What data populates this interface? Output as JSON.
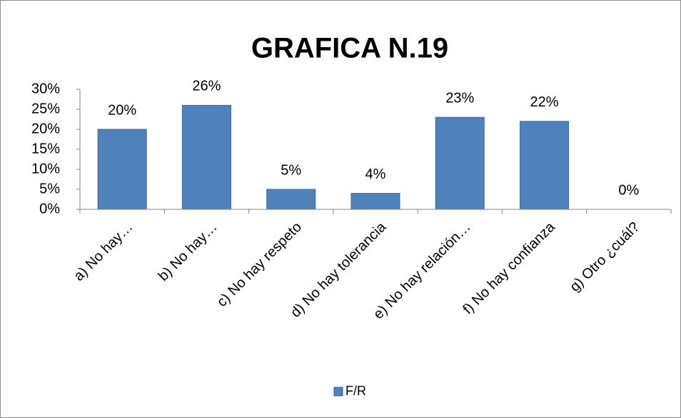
{
  "chart_data": {
    "type": "bar",
    "title": "GRAFICA N.19",
    "categories": [
      "a) No hay…",
      "b) No hay…",
      "c) No hay respeto",
      "d) No hay tolerancia",
      "e) No hay relación…",
      "f) No hay confianza",
      "g) Otro ¿cuál?"
    ],
    "series": [
      {
        "name": "F/R",
        "color": "#4f81bd",
        "values": [
          20,
          26,
          5,
          4,
          23,
          22,
          0
        ],
        "value_labels": [
          "20%",
          "26%",
          "5%",
          "4%",
          "23%",
          "22%",
          "0%"
        ]
      }
    ],
    "ylim": [
      0,
      30
    ],
    "yticks": [
      {
        "value": 0,
        "label": "0%"
      },
      {
        "value": 5,
        "label": "5%"
      },
      {
        "value": 10,
        "label": "10%"
      },
      {
        "value": 15,
        "label": "15%"
      },
      {
        "value": 20,
        "label": "20%"
      },
      {
        "value": 25,
        "label": "25%"
      },
      {
        "value": 30,
        "label": "30%"
      }
    ],
    "grid": false,
    "legend": "bottom"
  }
}
